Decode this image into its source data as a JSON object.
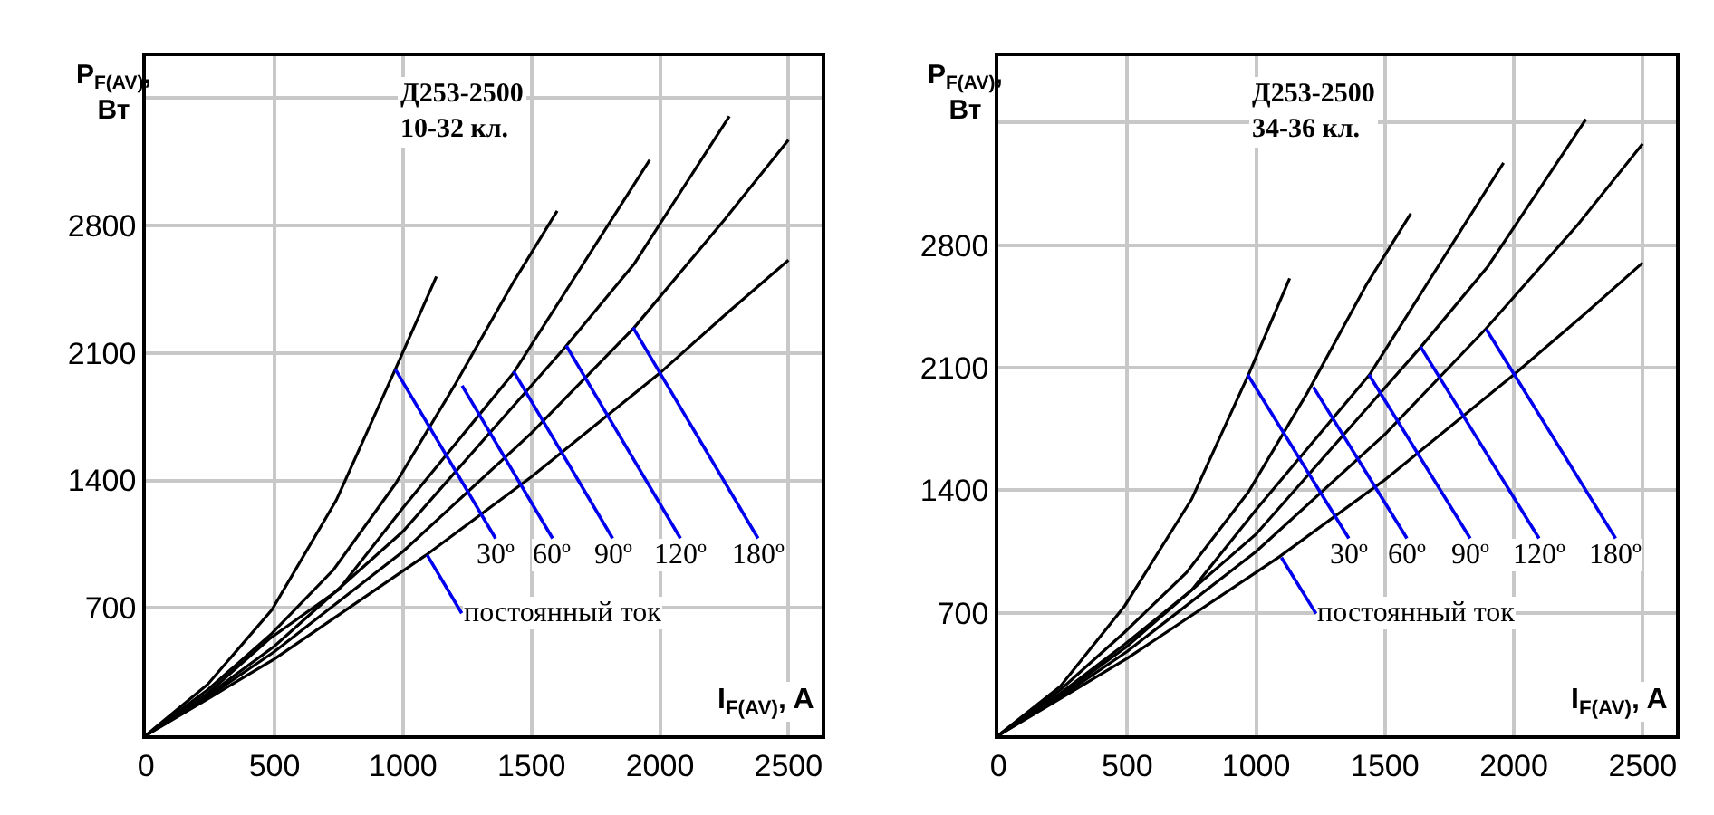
{
  "chart_data": [
    {
      "type": "line",
      "xlabel": "I$_{F(AV)}$, A",
      "ylabel": "P$_{F(AV)}$,\nВт",
      "series": [
        {
          "color": "#000000",
          "x": [
            0,
            240,
            490,
            740,
            970,
            1130
          ],
          "values": [
            0,
            280,
            690,
            1290,
            2010,
            2520
          ]
        },
        {
          "color": "#000000",
          "x": [
            0,
            240,
            490,
            730,
            970,
            1200,
            1430,
            1600
          ],
          "values": [
            0,
            250,
            560,
            910,
            1380,
            1920,
            2490,
            2880
          ]
        },
        {
          "color": "#000000",
          "x": [
            0,
            240,
            480,
            750,
            1000,
            1430,
            1960
          ],
          "values": [
            0,
            230,
            530,
            800,
            1250,
            1990,
            3160
          ]
        },
        {
          "color": "#000000",
          "x": [
            0,
            240,
            500,
            1000,
            1630,
            1900,
            2270
          ],
          "values": [
            0,
            220,
            490,
            1120,
            2130,
            2590,
            3400
          ]
        },
        {
          "color": "#000000",
          "x": [
            0,
            240,
            500,
            1000,
            1500,
            1900,
            2250,
            2500
          ],
          "values": [
            0,
            210,
            460,
            1010,
            1660,
            2240,
            2830,
            3270
          ]
        },
        {
          "color": "#000000",
          "x": [
            0,
            240,
            500,
            1090,
            1500,
            2000,
            2270,
            2500
          ],
          "values": [
            0,
            200,
            420,
            990,
            1420,
            1990,
            2330,
            2610
          ]
        }
      ],
      "annotations": [
        "Д253-2500\n10-32 кл.",
        {
          "text": "30º",
          "x": 970,
          "y": 2010
        },
        {
          "text": "60º",
          "x": 1230,
          "y": 1920
        },
        {
          "text": "90º",
          "x": 1430,
          "y": 2000
        },
        {
          "text": "120º",
          "x": 1635,
          "y": 2140
        },
        {
          "text": "180º",
          "x": 1895,
          "y": 2240
        },
        {
          "text": "постоянный ток",
          "x": 1094,
          "y": 990
        }
      ],
      "xlim": [
        0,
        2630
      ],
      "ylim": [
        0,
        3730
      ],
      "xticks": [
        0,
        500,
        1000,
        1500,
        2000,
        2500
      ],
      "yticks": [
        700,
        1400,
        2100,
        2800,
        {
          "value": 3500,
          "label": null
        }
      ],
      "grid": true,
      "line_style": "solid",
      "marker": "none"
    },
    {
      "type": "line",
      "xlabel": "I$_{F(AV)}$, A",
      "ylabel": "P$_{F(AV)}$,\nВт",
      "series": [
        {
          "color": "#000000",
          "x": [
            0,
            240,
            490,
            750,
            970,
            1130
          ],
          "values": [
            0,
            280,
            740,
            1350,
            2060,
            2610
          ]
        },
        {
          "color": "#000000",
          "x": [
            0,
            240,
            490,
            730,
            970,
            1200,
            1430,
            1600
          ],
          "values": [
            0,
            260,
            590,
            930,
            1390,
            1960,
            2580,
            2980
          ]
        },
        {
          "color": "#000000",
          "x": [
            0,
            240,
            490,
            750,
            1000,
            1440,
            1960
          ],
          "values": [
            0,
            240,
            520,
            830,
            1290,
            2060,
            3270
          ]
        },
        {
          "color": "#000000",
          "x": [
            0,
            240,
            500,
            1000,
            1640,
            1900,
            2280
          ],
          "values": [
            0,
            230,
            510,
            1150,
            2220,
            2680,
            3520
          ]
        },
        {
          "color": "#000000",
          "x": [
            0,
            240,
            500,
            1000,
            1500,
            1890,
            2250,
            2500
          ],
          "values": [
            0,
            220,
            480,
            1050,
            1720,
            2320,
            2920,
            3380
          ]
        },
        {
          "color": "#000000",
          "x": [
            0,
            240,
            500,
            1090,
            1500,
            2000,
            2270,
            2500
          ],
          "values": [
            0,
            210,
            440,
            1020,
            1460,
            2060,
            2400,
            2700
          ]
        }
      ],
      "annotations": [
        "Д253-2500\n34-36 кл.",
        {
          "text": "30º",
          "x": 967,
          "y": 2060
        },
        {
          "text": "60º",
          "x": 1222,
          "y": 1990
        },
        {
          "text": "90º",
          "x": 1438,
          "y": 2060
        },
        {
          "text": "120º",
          "x": 1638,
          "y": 2220
        },
        {
          "text": "180º",
          "x": 1893,
          "y": 2320
        },
        {
          "text": "постоянный ток",
          "x": 1098,
          "y": 1015
        }
      ],
      "xlim": [
        0,
        2630
      ],
      "ylim": [
        0,
        3880
      ],
      "xticks": [
        0,
        500,
        1000,
        1500,
        2000,
        2500
      ],
      "yticks": [
        700,
        1400,
        2100,
        2800,
        {
          "value": 3500,
          "label": null
        }
      ],
      "grid": true,
      "line_style": "solid",
      "marker": "none"
    }
  ]
}
